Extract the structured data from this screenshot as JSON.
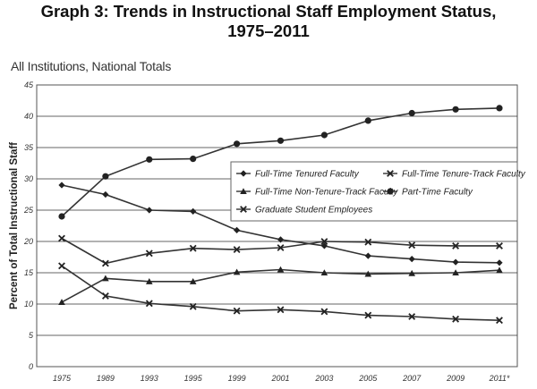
{
  "page": {
    "title_line1": "Graph 3: Trends in Instructional Staff Employment Status,",
    "title_line2": "1975–2011",
    "subtitle": "All Institutions, National Totals"
  },
  "chart_data": {
    "type": "line",
    "title": "Graph 3: Trends in Instructional Staff Employment Status, 1975–2011",
    "subtitle": "All Institutions, National Totals",
    "xlabel": "",
    "ylabel": "Percent of Total Instructional Staff",
    "categories": [
      "1975",
      "1989",
      "1993",
      "1995",
      "1999",
      "2001",
      "2003",
      "2005",
      "2007",
      "2009",
      "2011*"
    ],
    "ylim": [
      0,
      45
    ],
    "yticks": [
      0,
      5,
      10,
      15,
      20,
      25,
      30,
      35,
      40,
      45
    ],
    "grid": true,
    "legend_position": "center-right",
    "series": [
      {
        "name": "Full-Time Tenured Faculty",
        "marker": "diamond",
        "values": [
          29.0,
          27.5,
          25.0,
          24.8,
          21.8,
          20.3,
          19.3,
          17.7,
          17.2,
          16.7,
          16.6
        ]
      },
      {
        "name": "Full-Time Tenure-Track Faculty",
        "marker": "x",
        "values": [
          16.1,
          11.3,
          10.1,
          9.6,
          8.9,
          9.1,
          8.8,
          8.2,
          8.0,
          7.6,
          7.4
        ]
      },
      {
        "name": "Full-Time Non-Tenure-Track Faculty",
        "marker": "triangle",
        "values": [
          10.3,
          14.1,
          13.6,
          13.6,
          15.1,
          15.5,
          15.0,
          14.8,
          14.9,
          15.0,
          15.4
        ]
      },
      {
        "name": "Part-Time Faculty",
        "marker": "circle",
        "values": [
          24.0,
          30.4,
          33.1,
          33.2,
          35.6,
          36.1,
          37.0,
          39.3,
          40.5,
          41.1,
          41.3
        ]
      },
      {
        "name": "Graduate Student Employees",
        "marker": "x",
        "values": [
          20.5,
          16.5,
          18.1,
          18.9,
          18.7,
          19.0,
          20.0,
          19.9,
          19.4,
          19.3,
          19.3
        ]
      }
    ]
  }
}
